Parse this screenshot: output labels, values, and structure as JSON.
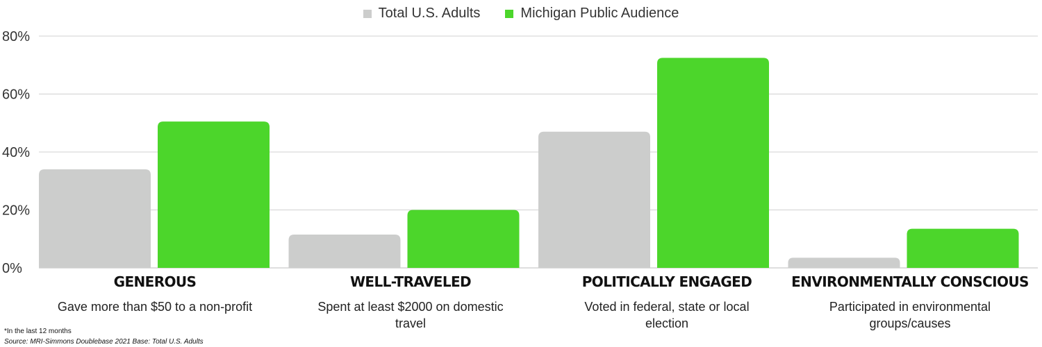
{
  "legend": {
    "total": "Total U.S. Adults",
    "michigan": "Michigan Public Audience"
  },
  "colors": {
    "total": "#cccdcc",
    "michigan": "#4cd62b",
    "grid": "#d0d0d0"
  },
  "categories_meta": [
    {
      "title": "GENEROUS",
      "subtitle": "Gave more than $50 to a non-profit"
    },
    {
      "title": "WELL-TRAVELED",
      "subtitle": "Spent at least $2000 on domestic travel"
    },
    {
      "title": "POLITICALLY ENGAGED",
      "subtitle": "Voted in federal, state or local election"
    },
    {
      "title": "ENVIRONMENTALLY CONSCIOUS",
      "subtitle": "Participated in environmental groups/causes"
    }
  ],
  "footnote": "*In the last 12 months",
  "source": "Source: MRI-Simmons Doublebase 2021 Base: Total U.S. Adults",
  "chart_data": {
    "type": "bar",
    "categories": [
      "GENEROUS",
      "WELL-TRAVELED",
      "POLITICALLY ENGAGED",
      "ENVIRONMENTALLY CONSCIOUS"
    ],
    "series": [
      {
        "name": "Total U.S. Adults",
        "values": [
          34,
          11.5,
          47,
          3.5
        ]
      },
      {
        "name": "Michigan Public Audience",
        "values": [
          50.5,
          20,
          72.5,
          13.5
        ]
      }
    ],
    "ylim": [
      0,
      80
    ],
    "yticks": [
      0,
      20,
      40,
      60,
      80
    ],
    "ytick_labels": [
      "0%",
      "20%",
      "40%",
      "60%",
      "80%"
    ],
    "grid": true,
    "legend": "top-center"
  }
}
